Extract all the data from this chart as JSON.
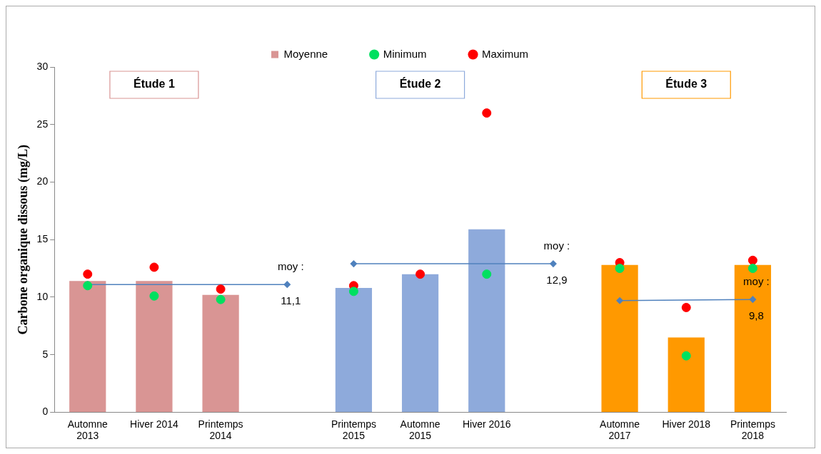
{
  "chart_data": {
    "type": "bar",
    "ylabel": "Carbone organique dissous (mg/L)",
    "categories": [
      "Automne 2013",
      "Hiver 2014",
      "Printemps 2014",
      null,
      "Printemps 2015",
      "Automne 2015",
      "Hiver 2016",
      null,
      "Automne 2017",
      "Hiver 2018",
      "Printemps 2018"
    ],
    "series": [
      {
        "name": "Moyenne",
        "colors": [
          "#d99594",
          "#d99594",
          "#d99594",
          null,
          "#8eaadb",
          "#8eaadb",
          "#8eaadb",
          null,
          "#ff9900",
          "#ff9900",
          "#ff9900"
        ],
        "values": [
          11.4,
          11.4,
          10.2,
          null,
          10.8,
          12.0,
          15.9,
          null,
          12.8,
          6.5,
          12.8
        ]
      },
      {
        "name": "Minimum",
        "type": "scatter",
        "color": "#00e060",
        "marker": "circle",
        "values": [
          11.0,
          10.1,
          9.8,
          null,
          10.5,
          null,
          12.0,
          null,
          12.5,
          4.9,
          12.5
        ]
      },
      {
        "name": "Maximum",
        "type": "scatter",
        "color": "#ff0000",
        "marker": "circle",
        "values": [
          12.0,
          12.6,
          10.7,
          null,
          11.0,
          12.0,
          26.0,
          null,
          13.0,
          9.1,
          13.2
        ]
      },
      {
        "type": "line",
        "color": "#4f81bd",
        "marker": "diamond",
        "values": [
          11.1,
          null,
          null,
          11.1,
          null,
          null,
          null,
          null,
          null,
          null,
          null
        ],
        "value_labels": [
          null,
          null,
          null,
          "moy : 11,1",
          null,
          null,
          null,
          null,
          null,
          null,
          null
        ]
      },
      {
        "type": "line",
        "color": "#4f81bd",
        "marker": "diamond",
        "values": [
          null,
          null,
          null,
          null,
          12.9,
          null,
          null,
          12.9,
          null,
          null,
          null
        ],
        "value_labels": [
          null,
          null,
          null,
          null,
          null,
          null,
          null,
          "moy : 12,9",
          null,
          null,
          null
        ]
      },
      {
        "type": "line",
        "color": "#4f81bd",
        "marker": "diamond",
        "values": [
          null,
          null,
          null,
          null,
          null,
          null,
          null,
          null,
          9.7,
          null,
          9.8
        ],
        "value_labels": [
          null,
          null,
          null,
          null,
          null,
          null,
          null,
          null,
          null,
          null,
          "moy : 9,8"
        ]
      }
    ],
    "annotations": [
      "Étude 1",
      "Étude 2",
      "Étude 3"
    ],
    "ylim": [
      0,
      30
    ],
    "yticks": [
      0,
      5,
      10,
      15,
      20,
      25,
      30
    ],
    "grid": false,
    "legend": "top"
  }
}
